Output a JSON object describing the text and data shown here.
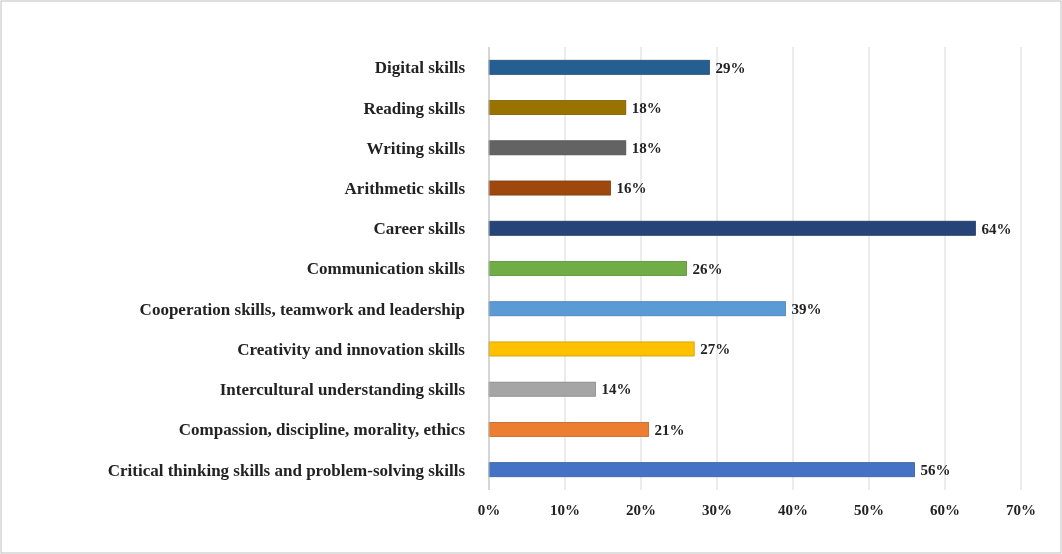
{
  "chart_data": {
    "type": "bar",
    "orientation": "horizontal",
    "categories": [
      "Digital skills",
      "Reading skills",
      "Writing skills",
      "Arithmetic skills",
      "Career skills",
      "Communication skills",
      "Cooperation skills, teamwork and leadership",
      "Creativity and innovation skills",
      "Intercultural understanding skills",
      "Compassion, discipline, morality, ethics",
      "Critical thinking skills and problem-solving skills"
    ],
    "values": [
      29,
      18,
      18,
      16,
      64,
      26,
      39,
      27,
      14,
      21,
      56
    ],
    "value_labels": [
      "29%",
      "18%",
      "18%",
      "16%",
      "64%",
      "26%",
      "39%",
      "27%",
      "14%",
      "21%",
      "56%"
    ],
    "colors": [
      "#255e91",
      "#997300",
      "#636363",
      "#9e480e",
      "#264478",
      "#70ad47",
      "#5b9bd5",
      "#ffc000",
      "#a5a5a5",
      "#ed7d31",
      "#4472c4"
    ],
    "xlim": [
      0,
      70
    ],
    "xticks": [
      {
        "value": 0,
        "label": "0%"
      },
      {
        "value": 10,
        "label": "10%"
      },
      {
        "value": 20,
        "label": "20%"
      },
      {
        "value": 30,
        "label": "30%"
      },
      {
        "value": 40,
        "label": "40%"
      },
      {
        "value": 50,
        "label": "50%"
      },
      {
        "value": 60,
        "label": "60%"
      },
      {
        "value": 70,
        "label": "70%"
      }
    ],
    "grid": "x"
  }
}
